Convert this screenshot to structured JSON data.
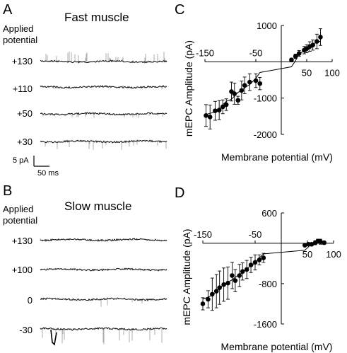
{
  "panels": {
    "A": {
      "letter": "A",
      "title": "Fast muscle",
      "applied_line1": "Applied",
      "applied_line2": "potential",
      "traces": [
        "+130",
        "+110",
        "+50",
        "+30"
      ],
      "scale_current": "5 pA",
      "scale_time": "50 ms"
    },
    "B": {
      "letter": "B",
      "title": "Slow muscle",
      "applied_line1": "Applied",
      "applied_line2": "potential",
      "traces": [
        "+130",
        "+100",
        "0",
        "-30"
      ]
    },
    "C": {
      "letter": "C"
    },
    "D": {
      "letter": "D"
    }
  },
  "chart_data": [
    {
      "panel": "C",
      "type": "scatter",
      "title": "",
      "xlabel": "Membrane potential (mV)",
      "ylabel": "mEPC Amplitude (pA)",
      "xlim": [
        -150,
        100
      ],
      "ylim": [
        -2000,
        1000
      ],
      "x_ticks": [
        -150,
        -50,
        50,
        100
      ],
      "y_ticks": [
        1000,
        -1000,
        -2000
      ],
      "x_tick_labels": [
        "-150",
        "-50",
        "50",
        "100"
      ],
      "y_tick_labels": [
        "1000",
        "-1000",
        "-2000"
      ],
      "fit_line": true,
      "series": [
        {
          "x": [
            -148,
            -140,
            -130,
            -122,
            -115,
            -108,
            -98,
            -92,
            -85,
            -78,
            -72,
            -62,
            -50,
            -42,
            20,
            28,
            35,
            45,
            50,
            56,
            62,
            70,
            77
          ],
          "y": [
            -1480,
            -1520,
            -1350,
            -1330,
            -1240,
            -1180,
            -820,
            -880,
            -1060,
            -790,
            -650,
            -560,
            -520,
            -600,
            50,
            150,
            230,
            320,
            360,
            420,
            460,
            560,
            680
          ],
          "err": [
            300,
            330,
            260,
            260,
            190,
            160,
            260,
            290,
            110,
            260,
            230,
            230,
            190,
            170,
            50,
            60,
            80,
            100,
            110,
            130,
            140,
            200,
            230
          ]
        }
      ]
    },
    {
      "panel": "D",
      "type": "scatter",
      "title": "",
      "xlabel": "Membrane potential (mV)",
      "ylabel": "mEPC Amplitude (pA)",
      "xlim": [
        -150,
        100
      ],
      "ylim": [
        -1600,
        600
      ],
      "x_ticks": [
        -150,
        -50,
        50,
        100
      ],
      "y_ticks": [
        600,
        -800,
        -1600
      ],
      "x_tick_labels": [
        "-150",
        "-50",
        "50",
        "100"
      ],
      "y_tick_labels": [
        "600",
        "-800",
        "-1600"
      ],
      "fit_line": true,
      "series": [
        {
          "x": [
            -150,
            -140,
            -132,
            -124,
            -118,
            -110,
            -102,
            -94,
            -88,
            -80,
            -74,
            -66,
            -58,
            -50,
            -42,
            -34,
            45,
            52,
            58,
            65,
            70,
            75,
            82
          ],
          "y": [
            -1200,
            -1110,
            -1010,
            -950,
            -880,
            -820,
            -790,
            -640,
            -740,
            -640,
            -560,
            -520,
            -430,
            -380,
            -330,
            -290,
            -40,
            -20,
            -20,
            10,
            40,
            30,
            10
          ],
          "err": [
            120,
            170,
            320,
            330,
            330,
            330,
            320,
            260,
            220,
            220,
            170,
            180,
            150,
            150,
            100,
            90,
            20,
            20,
            30,
            40,
            40,
            50,
            30
          ]
        }
      ]
    }
  ]
}
